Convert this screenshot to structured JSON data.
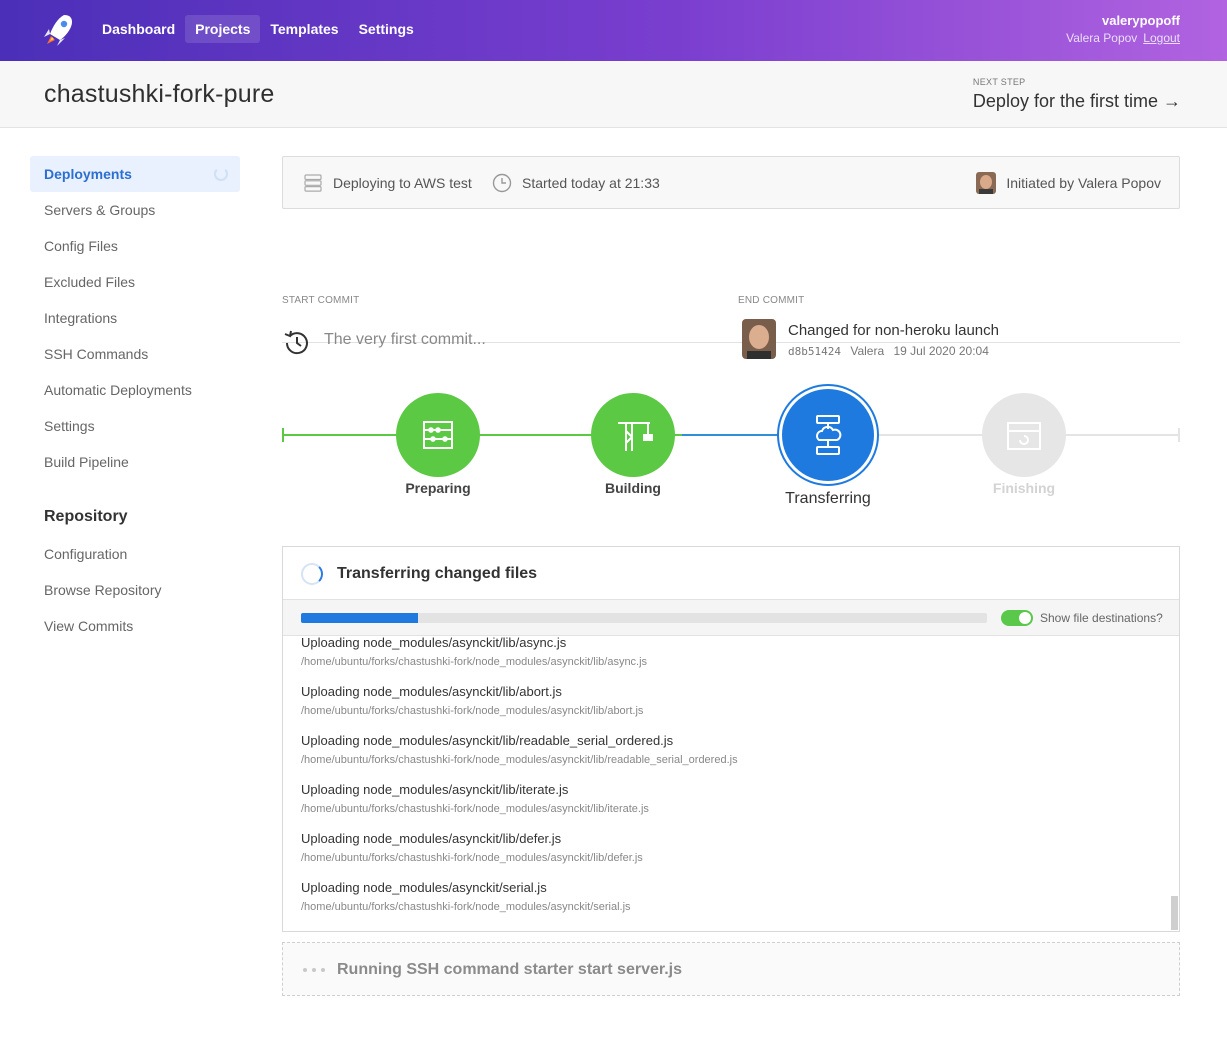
{
  "nav": {
    "items": [
      {
        "label": "Dashboard",
        "active": false
      },
      {
        "label": "Projects",
        "active": true
      },
      {
        "label": "Templates",
        "active": false
      },
      {
        "label": "Settings",
        "active": false
      }
    ],
    "user": {
      "username": "valerypopoff",
      "fullname": "Valera Popov",
      "logout": "Logout"
    },
    "icons": {
      "logo": "rocket-logo-icon"
    }
  },
  "project": {
    "title": "chastushki-fork-pure",
    "next_step_label": "NEXT STEP",
    "next_step_value": "Deploy for the first time →"
  },
  "sidebar": {
    "items": [
      {
        "label": "Deployments",
        "active": true
      },
      {
        "label": "Servers & Groups"
      },
      {
        "label": "Config Files"
      },
      {
        "label": "Excluded Files"
      },
      {
        "label": "Integrations"
      },
      {
        "label": "SSH Commands"
      },
      {
        "label": "Automatic Deployments"
      },
      {
        "label": "Settings"
      },
      {
        "label": "Build Pipeline"
      }
    ],
    "repo_heading": "Repository",
    "repo_items": [
      {
        "label": "Configuration"
      },
      {
        "label": "Browse Repository"
      },
      {
        "label": "View Commits"
      }
    ]
  },
  "deployment": {
    "target": "Deploying to AWS test",
    "started": "Started today at 21:33",
    "initiated": "Initiated by Valera Popov",
    "start_commit_label": "START COMMIT",
    "start_commit_text": "The very first commit...",
    "end_commit_label": "END COMMIT",
    "end_commit_message": "Changed for non-heroku launch",
    "end_commit_hash": "d8b51424",
    "end_commit_author": "Valera",
    "end_commit_date": "19 Jul 2020 20:04"
  },
  "pipeline": {
    "stages": [
      {
        "label": "Preparing",
        "state": "done",
        "icon": "abacus-icon"
      },
      {
        "label": "Building",
        "state": "done",
        "icon": "crane-icon"
      },
      {
        "label": "Transferring",
        "state": "active",
        "icon": "server-cloud-icon"
      },
      {
        "label": "Finishing",
        "state": "pending",
        "icon": "box-icon"
      }
    ],
    "colors": {
      "done": "#5bc943",
      "active": "#1f7ae0",
      "pending": "#e6e6e6"
    }
  },
  "transfer": {
    "title": "Transferring changed files",
    "progress": 0.17,
    "toggle_label": "Show file destinations?",
    "toggle_on": true,
    "files": [
      {
        "name": "Uploading node_modules/asynckit/lib/async.js",
        "dest": "/home/ubuntu/forks/chastushki-fork/node_modules/asynckit/lib/async.js"
      },
      {
        "name": "Uploading node_modules/asynckit/lib/abort.js",
        "dest": "/home/ubuntu/forks/chastushki-fork/node_modules/asynckit/lib/abort.js"
      },
      {
        "name": "Uploading node_modules/asynckit/lib/readable_serial_ordered.js",
        "dest": "/home/ubuntu/forks/chastushki-fork/node_modules/asynckit/lib/readable_serial_ordered.js"
      },
      {
        "name": "Uploading node_modules/asynckit/lib/iterate.js",
        "dest": "/home/ubuntu/forks/chastushki-fork/node_modules/asynckit/lib/iterate.js"
      },
      {
        "name": "Uploading node_modules/asynckit/lib/defer.js",
        "dest": "/home/ubuntu/forks/chastushki-fork/node_modules/asynckit/lib/defer.js"
      },
      {
        "name": "Uploading node_modules/asynckit/serial.js",
        "dest": "/home/ubuntu/forks/chastushki-fork/node_modules/asynckit/serial.js"
      }
    ]
  },
  "ssh": {
    "text": "Running SSH command starter start server.js"
  }
}
